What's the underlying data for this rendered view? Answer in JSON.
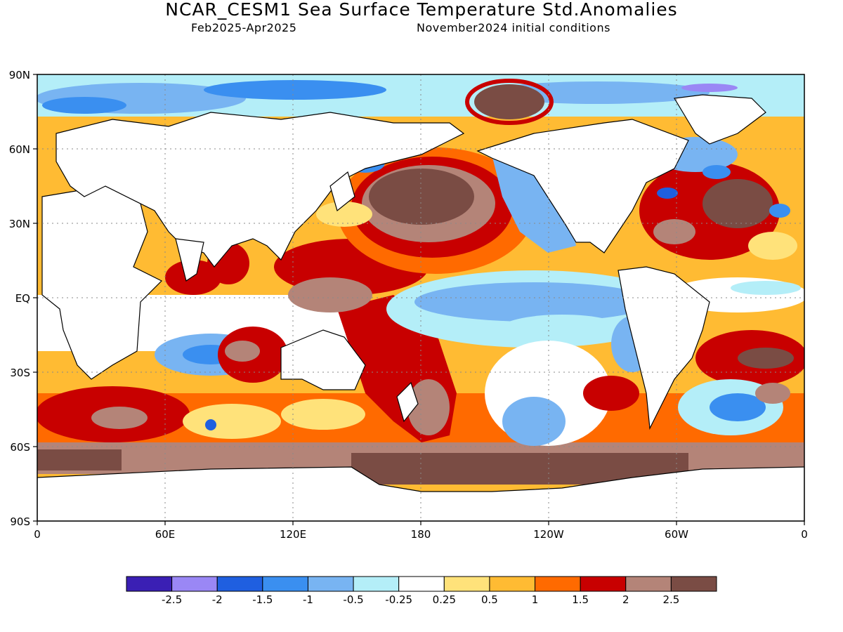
{
  "header": {
    "title": "NCAR_CESM1 Sea Surface Temperature Std.Anomalies",
    "period": "Feb2025-Apr2025",
    "init": "November2024 initial conditions"
  },
  "axes": {
    "lat_labels": [
      "90N",
      "60N",
      "30N",
      "EQ",
      "30S",
      "60S",
      "90S"
    ],
    "lon_labels": [
      "0",
      "60E",
      "120E",
      "180",
      "120W",
      "60W",
      "0"
    ]
  },
  "colorbar": {
    "colors": [
      "#3a1fb4",
      "#9a87f5",
      "#1f5fe0",
      "#3a8ff0",
      "#78b4f2",
      "#b4eef8",
      "#ffffff",
      "#ffe27a",
      "#ffbb33",
      "#ff6a00",
      "#c80000",
      "#b48478",
      "#7a4c44"
    ],
    "labels": [
      "-2.5",
      "-2",
      "-1.5",
      "-1",
      "-0.5",
      "-0.25",
      "0.25",
      "0.5",
      "1",
      "1.5",
      "2",
      "2.5"
    ]
  }
}
